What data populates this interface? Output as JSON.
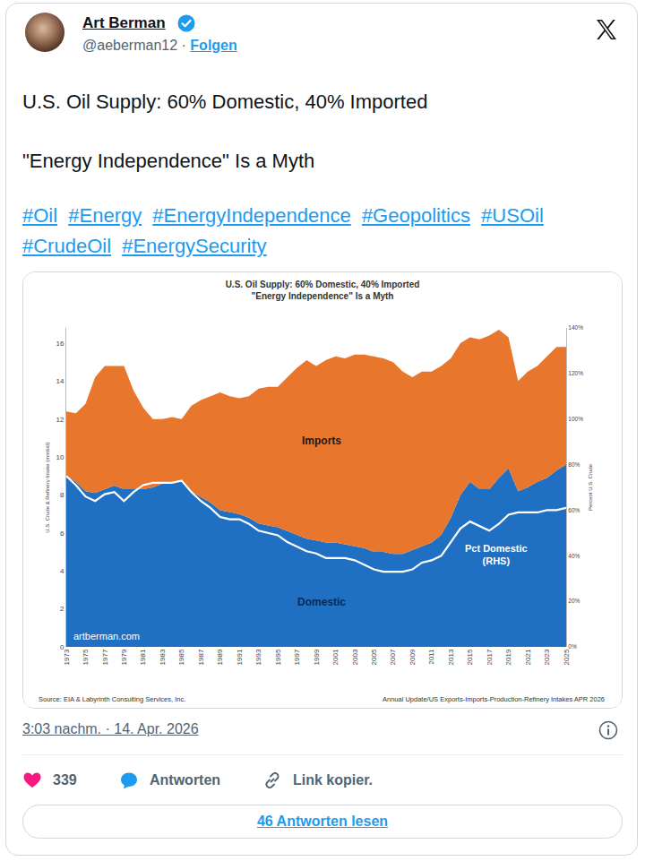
{
  "tweet": {
    "name": "Art Berman",
    "handle": "@aeberman12",
    "separator": "·",
    "follow": "Folgen",
    "text": [
      "U.S. Oil Supply: 60% Domestic, 40% Imported",
      "\"Energy Independence\" Is a Myth"
    ],
    "hashtags": [
      "#Oil",
      "#Energy",
      "#EnergyIndependence",
      "#Geopolitics",
      "#USOil",
      "#CrudeOil",
      "#EnergySecurity"
    ],
    "timestamp": "3:03 nachm. · 14. Apr. 2026",
    "likes": 339,
    "reply": "Antworten",
    "copy_link": "Link kopier.",
    "read_replies": "46 Antworten lesen"
  },
  "chart_data": {
    "type": "area",
    "title": "U.S. Oil Supply: 60% Domestic, 40% Imported",
    "subtitle": "\"Energy Independence\" Is a Myth",
    "ylabel": "U.S. Crude & Refinery Intake (mmb/d)",
    "y2label": "Percent U.S. Crude",
    "annotations": [
      "artberman.com",
      "Source: EIA & Labyrinth Consulting Services, Inc.",
      "Annual Update/US Exports-Imports-Production-Refinery Intakes APR 2026"
    ],
    "stacked": true,
    "grid": false,
    "x": [
      1973,
      1974,
      1975,
      1976,
      1977,
      1978,
      1979,
      1980,
      1981,
      1982,
      1983,
      1984,
      1985,
      1986,
      1987,
      1988,
      1989,
      1990,
      1991,
      1992,
      1993,
      1994,
      1995,
      1996,
      1997,
      1998,
      1999,
      2000,
      2001,
      2002,
      2003,
      2004,
      2005,
      2006,
      2007,
      2008,
      2009,
      2010,
      2011,
      2012,
      2013,
      2014,
      2015,
      2016,
      2017,
      2018,
      2019,
      2020,
      2021,
      2022,
      2023,
      2024,
      2025
    ],
    "xlim": [
      1973,
      2025
    ],
    "xticks": [
      1973,
      1975,
      1977,
      1979,
      1981,
      1983,
      1985,
      1987,
      1989,
      1991,
      1993,
      1995,
      1997,
      1999,
      2001,
      2003,
      2005,
      2007,
      2009,
      2011,
      2013,
      2015,
      2017,
      2019,
      2021,
      2023,
      2025
    ],
    "ylim": [
      0,
      16.8
    ],
    "yticks": [
      0,
      2,
      4,
      6,
      8,
      10,
      12,
      14,
      16
    ],
    "y2lim": [
      0,
      140
    ],
    "y2ticks": [
      {
        "value": 0,
        "label": "0%"
      },
      {
        "value": 20,
        "label": "20%"
      },
      {
        "value": 40,
        "label": "40%"
      },
      {
        "value": 60,
        "label": "60%"
      },
      {
        "value": 80,
        "label": "80%"
      },
      {
        "value": 100,
        "label": "100%"
      },
      {
        "value": 120,
        "label": "120%"
      },
      {
        "value": 140,
        "label": "140%"
      }
    ],
    "series": [
      {
        "name": "Domestic",
        "type": "area",
        "color": "#1f6fc2",
        "values": [
          9.0,
          8.7,
          8.2,
          8.1,
          8.3,
          8.5,
          8.3,
          8.3,
          8.3,
          8.4,
          8.6,
          8.7,
          8.7,
          8.2,
          7.9,
          7.6,
          7.2,
          7.1,
          7.0,
          6.8,
          6.5,
          6.4,
          6.3,
          6.1,
          5.9,
          5.7,
          5.6,
          5.5,
          5.5,
          5.4,
          5.3,
          5.2,
          5.0,
          5.0,
          4.9,
          4.9,
          5.1,
          5.3,
          5.5,
          5.9,
          6.8,
          8.0,
          8.7,
          8.3,
          8.3,
          8.9,
          9.4,
          8.2,
          8.4,
          8.7,
          8.9,
          9.3,
          9.6
        ]
      },
      {
        "name": "Imports",
        "type": "area",
        "color": "#e8762d",
        "values": [
          3.4,
          3.6,
          4.6,
          6.1,
          6.5,
          6.3,
          6.5,
          5.2,
          4.3,
          3.6,
          3.4,
          3.4,
          3.3,
          4.5,
          5.1,
          5.6,
          6.2,
          6.1,
          6.1,
          6.4,
          7.1,
          7.3,
          7.4,
          8.1,
          8.8,
          9.4,
          9.2,
          9.6,
          9.8,
          9.8,
          10.1,
          10.2,
          10.3,
          10.2,
          10.1,
          9.6,
          9.1,
          9.2,
          9.0,
          8.9,
          8.4,
          8.0,
          7.6,
          7.9,
          8.1,
          7.8,
          6.9,
          5.8,
          6.1,
          6.1,
          6.4,
          6.5,
          6.2
        ]
      },
      {
        "name": "Pct Domestic (RHS)",
        "type": "line",
        "axis": "y2",
        "color": "#ffffff",
        "line_style": "solid",
        "values": [
          75,
          71,
          66,
          64,
          67,
          68,
          64,
          68,
          71,
          72,
          72,
          72,
          73,
          68,
          64,
          61,
          57,
          56,
          56,
          54,
          51,
          50,
          49,
          46,
          44,
          42,
          41,
          39,
          39,
          39,
          38,
          36,
          34,
          33,
          33,
          33,
          34,
          37,
          38,
          40,
          46,
          52,
          55,
          53,
          51,
          54,
          58,
          59,
          59,
          59,
          60,
          60,
          61
        ]
      }
    ]
  }
}
